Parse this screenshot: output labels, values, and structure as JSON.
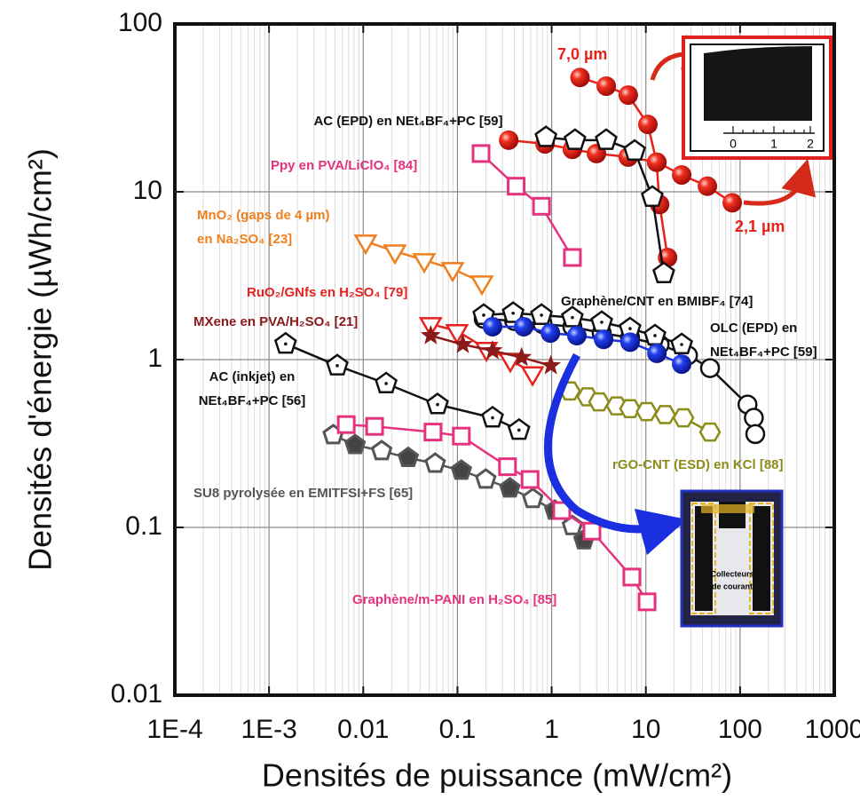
{
  "chart_data": {
    "type": "line",
    "xlabel": "Densités de puissance (mW/cm²)",
    "ylabel": "Densités d'énergie (µWh/cm²)",
    "xscale": "log",
    "yscale": "log",
    "xlim": [
      0.0001,
      1000
    ],
    "ylim": [
      0.01,
      100
    ],
    "xticks": [
      {
        "value": 0.0001,
        "label": "1E-4"
      },
      {
        "value": 0.001,
        "label": "1E-3"
      },
      0.01,
      0.1,
      1,
      10,
      100,
      1000
    ],
    "yticks": [
      0.01,
      0.1,
      1,
      10,
      100
    ],
    "grid": true,
    "series": [
      {
        "name": "7,0 µm",
        "color": "#e8211b",
        "marker": "sphere",
        "x": [
          2,
          3.8,
          6.5,
          10.5,
          13,
          14,
          17
        ],
        "values": [
          48,
          42.6,
          37.7,
          25.2,
          15,
          8.4,
          4.06
        ]
      },
      {
        "name": "2,1 µm",
        "color": "#e8211b",
        "marker": "sphere",
        "x": [
          0.35,
          0.85,
          1.66,
          2.99,
          6.5,
          13.1,
          24,
          45,
          82.6
        ],
        "values": [
          20.3,
          19.3,
          17.9,
          16.9,
          16.1,
          15,
          12.6,
          10.8,
          8.6
        ]
      },
      {
        "color": "#111111",
        "marker": "pentagon",
        "x": [
          0.87,
          1.77,
          3.79,
          7.6,
          11.7,
          15.5
        ],
        "values": [
          21.1,
          20.3,
          20.3,
          17.5,
          9.3,
          3.26
        ]
      },
      {
        "color": "#e5327e",
        "marker": "square",
        "x": [
          0.178,
          0.42,
          0.78,
          1.66
        ],
        "values": [
          16.9,
          10.8,
          8.2,
          4.06
        ]
      },
      {
        "color": "#f07f1e",
        "marker": "triangle-down",
        "x": [
          0.0106,
          0.0217,
          0.0444,
          0.0889,
          0.182
        ],
        "values": [
          5.06,
          4.42,
          3.92,
          3.47,
          2.89
        ]
      },
      {
        "color": "#e8231f",
        "marker": "triangle-down",
        "x": [
          0.052,
          0.099,
          0.203,
          0.364,
          0.627
        ],
        "values": [
          1.63,
          1.48,
          1.16,
          1.0,
          0.83
        ]
      },
      {
        "color": "#8b1a1a",
        "marker": "star",
        "x": [
          0.052,
          0.114,
          0.236,
          0.48,
          0.98
        ],
        "values": [
          1.39,
          1.23,
          1.13,
          1.03,
          0.92
        ]
      },
      {
        "color": "#111111",
        "marker": "circle",
        "x": [
          0.19,
          0.4,
          0.8,
          1.66,
          3.4,
          6.8,
          14,
          28,
          48,
          120,
          140,
          145
        ],
        "values": [
          1.75,
          1.7,
          1.63,
          1.57,
          1.44,
          1.35,
          1.23,
          1.06,
          0.89,
          0.54,
          0.45,
          0.36
        ]
      },
      {
        "color": "#111111",
        "marker": "pentagon-dot",
        "x": [
          0.19,
          0.39,
          0.78,
          1.66,
          3.4,
          6.8,
          12.5,
          24
        ],
        "values": [
          1.84,
          1.89,
          1.84,
          1.78,
          1.67,
          1.53,
          1.39,
          1.23
        ]
      },
      {
        "color": "#1a2fe0",
        "marker": "sphere",
        "x": [
          0.236,
          0.505,
          0.97,
          1.85,
          3.56,
          6.8,
          13.1,
          24
        ],
        "values": [
          1.57,
          1.57,
          1.44,
          1.39,
          1.32,
          1.27,
          1.09,
          0.94
        ]
      },
      {
        "color": "#8c8c1a",
        "marker": "hexagon",
        "x": [
          1.56,
          2.4,
          3.19,
          4.9,
          6.8,
          10.2,
          16,
          25,
          48
        ],
        "values": [
          0.65,
          0.6,
          0.56,
          0.53,
          0.51,
          0.49,
          0.47,
          0.45,
          0.37
        ]
      },
      {
        "color": "#111111",
        "marker": "pentagon-dot",
        "x": [
          0.0015,
          0.0053,
          0.0175,
          0.0615,
          0.236,
          0.45
        ],
        "values": [
          1.24,
          0.92,
          0.72,
          0.54,
          0.45,
          0.38
        ]
      },
      {
        "color": "#555555",
        "marker": "pentagon-gray",
        "x": [
          0.0048,
          0.0082,
          0.0157,
          0.03,
          0.058,
          0.11,
          0.2,
          0.36,
          0.63,
          1.08,
          1.66,
          2.2
        ],
        "values": [
          0.355,
          0.31,
          0.285,
          0.26,
          0.24,
          0.218,
          0.193,
          0.171,
          0.148,
          0.126,
          0.102,
          0.084
        ]
      },
      {
        "color": "#e5327e",
        "marker": "square",
        "x": [
          0.0066,
          0.0132,
          0.055,
          0.11,
          0.34,
          0.59,
          1.28,
          2.68,
          7.1,
          10.3
        ],
        "values": [
          0.41,
          0.4,
          0.37,
          0.35,
          0.23,
          0.193,
          0.126,
          0.095,
          0.0506,
          0.036
        ]
      }
    ],
    "annotations": [
      {
        "lines": [
          "AC (EPD) en NEt₄BF₄+PC [59]"
        ],
        "color": "#111111"
      },
      {
        "lines": [
          "Ppy en PVA/LiClO₄ [84]"
        ],
        "color": "#e5327e"
      },
      {
        "lines": [
          "MnO₂ (gaps de 4 µm)",
          "en Na₂SO₄ [23]"
        ],
        "color": "#f07f1e"
      },
      {
        "lines": [
          "RuO₂/GNfs en H₂SO₄ [79]"
        ],
        "color": "#e8231f"
      },
      {
        "lines": [
          "MXene en PVA/H₂SO₄ [21]"
        ],
        "color": "#8b1a1a"
      },
      {
        "lines": [
          "Graphène/CNT en BMIBF₄ [74]"
        ],
        "color": "#111111"
      },
      {
        "lines": [
          "OLC (EPD) en",
          "NEt₄BF₄+PC [59]"
        ],
        "color": "#111111"
      },
      {
        "lines": [
          "AC (inkjet) en",
          "NEt₄BF₄+PC [56]"
        ],
        "color": "#111111"
      },
      {
        "lines": [
          "rGO-CNT (ESD) en KCl [88]"
        ],
        "color": "#8c8c1a"
      },
      {
        "lines": [
          "SU8 pyrolysée en EMITFSI+FS [65]"
        ],
        "color": "#555555"
      },
      {
        "lines": [
          "Graphène/m-PANI en H₂SO₄ [85]"
        ],
        "color": "#e5327e"
      }
    ],
    "insets": [
      {
        "scale_labels": [
          "0",
          "1",
          "2"
        ]
      },
      {
        "caption": [
          "Collecteurs",
          "de courant"
        ]
      }
    ]
  }
}
